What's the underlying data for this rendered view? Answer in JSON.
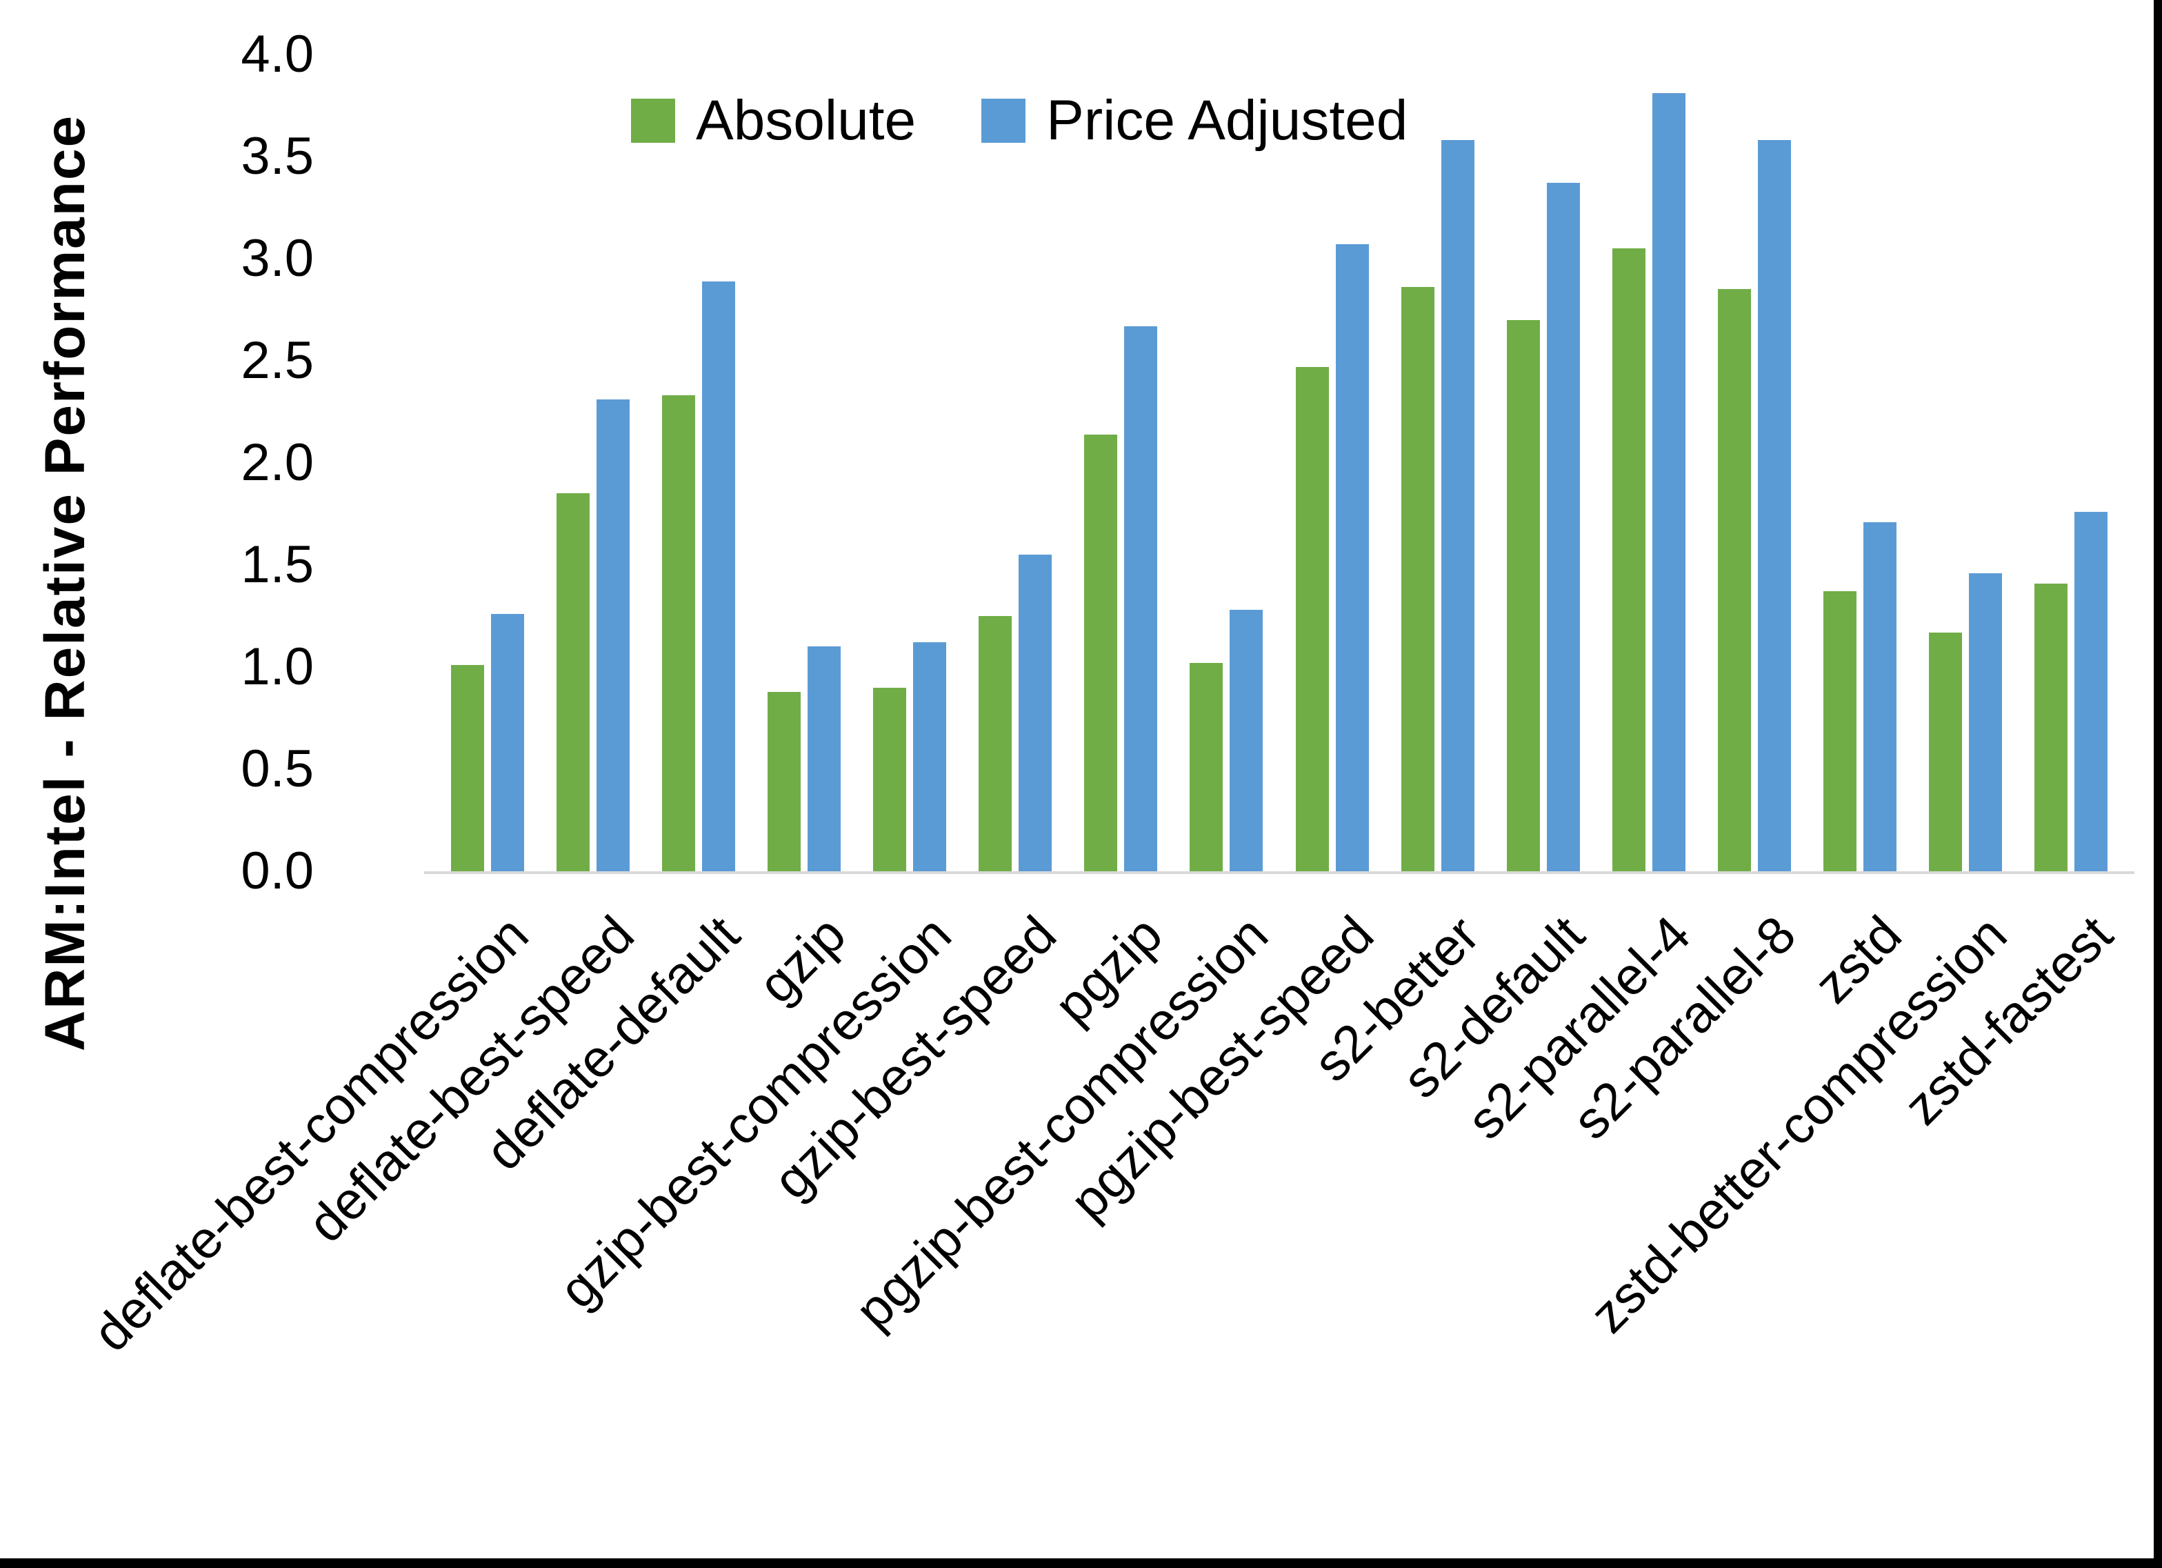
{
  "chart_data": {
    "type": "bar",
    "title": "",
    "ylabel": "ARM:Intel - Relative Performance",
    "xlabel": "",
    "ylim": [
      0.0,
      4.0
    ],
    "ytick_step": 0.5,
    "ytick_labels": [
      "0.0",
      "0.5",
      "1.0",
      "1.5",
      "2.0",
      "2.5",
      "3.0",
      "3.5",
      "4.0"
    ],
    "grid": false,
    "legend_position": "top-center",
    "categories": [
      "deflate-best-compression",
      "deflate-best-speed",
      "deflate-default",
      "gzip",
      "gzip-best-compression",
      "gzip-best-speed",
      "pgzip",
      "pgzip-best-compression",
      "pgzip-best-speed",
      "s2-better",
      "s2-default",
      "s2-parallel-4",
      "s2-parallel-8",
      "zstd",
      "zstd-better-compression",
      "zstd-fastest"
    ],
    "series": [
      {
        "name": "Absolute",
        "color": "#70AD47",
        "values": [
          1.01,
          1.85,
          2.33,
          0.88,
          0.9,
          1.25,
          2.14,
          1.02,
          2.47,
          2.86,
          2.7,
          3.05,
          2.85,
          1.37,
          1.17,
          1.41
        ]
      },
      {
        "name": "Price Adjusted",
        "color": "#5B9BD5",
        "values": [
          1.26,
          2.31,
          2.89,
          1.1,
          1.12,
          1.55,
          2.67,
          1.28,
          3.07,
          3.58,
          3.37,
          3.81,
          3.58,
          1.71,
          1.46,
          1.76
        ]
      }
    ]
  },
  "colors": {
    "axis_line": "#D9D9D9",
    "text": "#000000",
    "frame_border": "#000000",
    "background": "#FFFFFF"
  }
}
